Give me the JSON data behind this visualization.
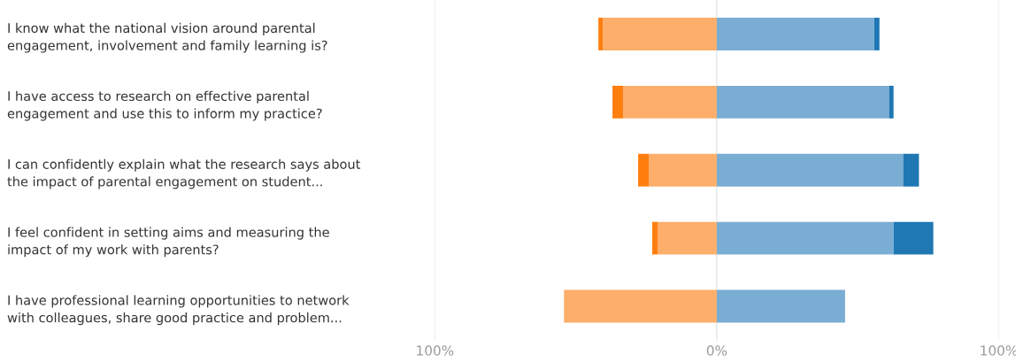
{
  "chart_data": {
    "type": "bar",
    "orientation": "horizontal",
    "stacked": true,
    "categories": [
      "I know what the national vision around parental\nengagement, involvement and family learning is?",
      "I have access to research on effective parental\nengagement and use this to inform my practice?",
      "I can confidently explain what the research says about\nthe impact of parental engagement on student...",
      "I feel confident in setting aims and measuring the\nimpact of my work with parents?",
      "I have professional learning opportunities to network\nwith colleagues, share good practice and problem..."
    ],
    "series": [
      {
        "color": "#fdae6b",
        "values": [
          -40.4,
          -33.2,
          -24.1,
          -21.0,
          -54.2
        ]
      },
      {
        "color": "#ff7f0e",
        "values": [
          -1.6,
          -3.8,
          -3.8,
          -1.9,
          null
        ]
      },
      {
        "color": "#7aadd3",
        "values": [
          55.8,
          61.1,
          66.1,
          62.7,
          45.5
        ]
      },
      {
        "color": "#1f77b4",
        "values": [
          1.9,
          1.6,
          5.6,
          14.1,
          null
        ]
      }
    ],
    "xlim": [
      -100,
      100
    ],
    "xticks": [
      {
        "value": -100,
        "label": "100%"
      },
      {
        "value": 0,
        "label": "0%"
      },
      {
        "value": 100,
        "label": "100%"
      }
    ],
    "grid": "x"
  }
}
